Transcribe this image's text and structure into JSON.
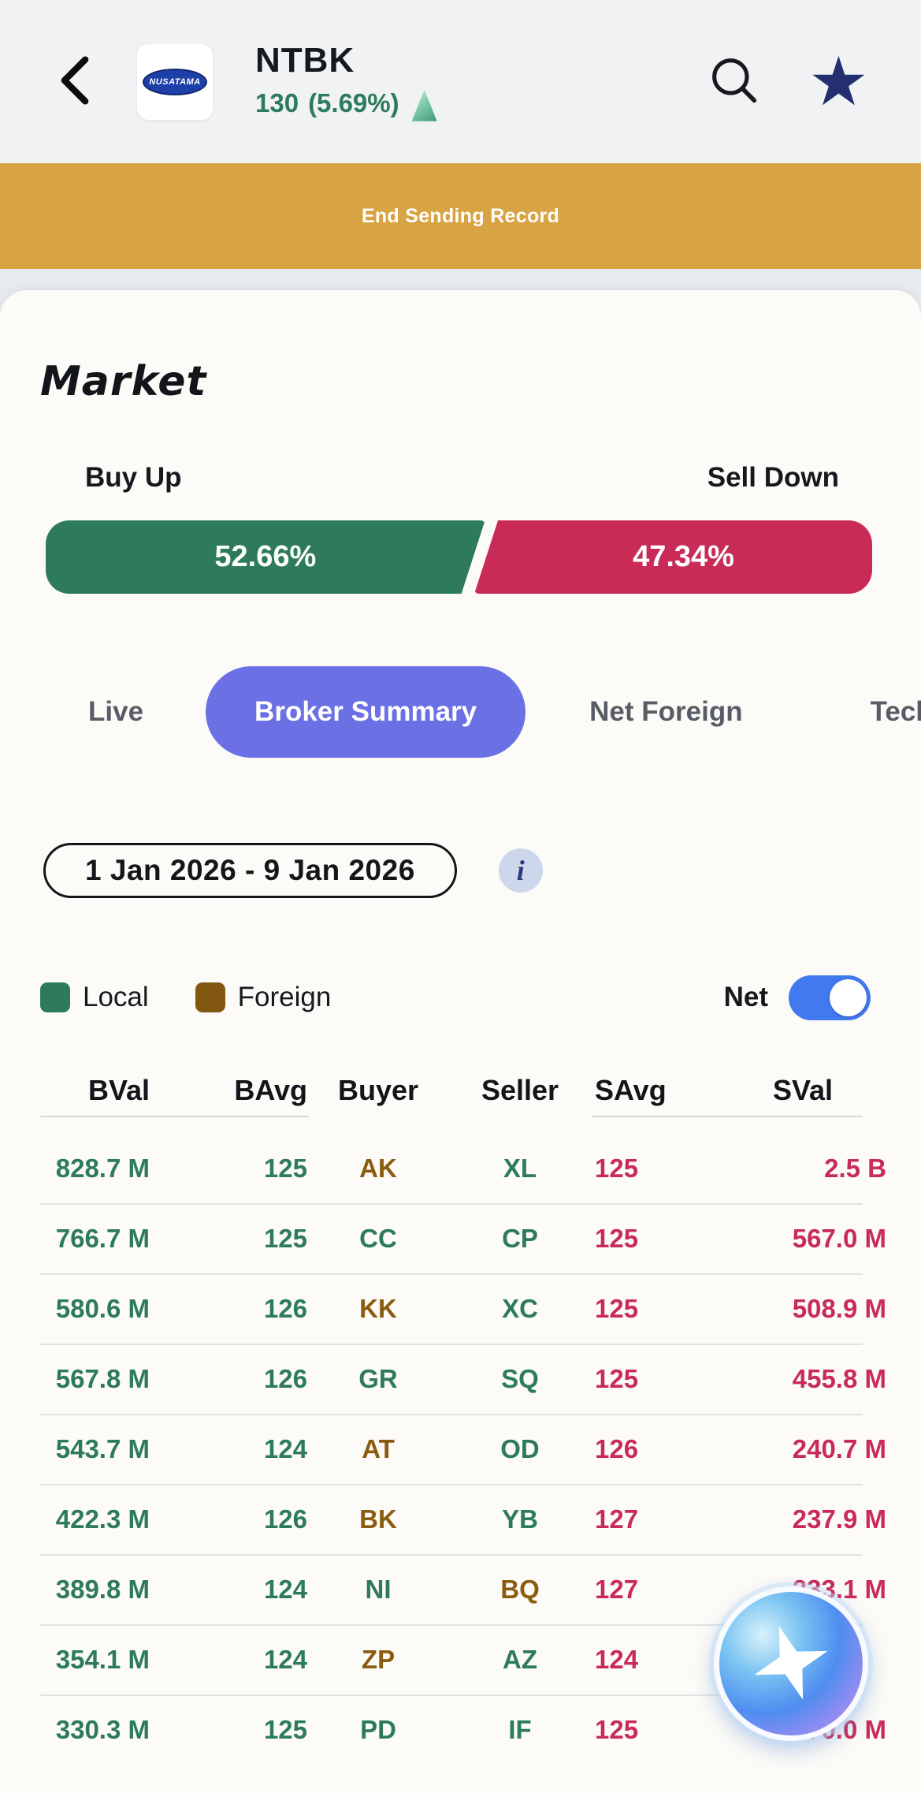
{
  "header": {
    "title": "NTBK",
    "price": "130",
    "change": "(5.69%)",
    "logo_text": "NUSATAMA"
  },
  "banner": {
    "label": "End Sending Record"
  },
  "market": {
    "title": "Market",
    "buy_label": "Buy Up",
    "sell_label": "Sell Down",
    "buy_pct": "52.66%",
    "sell_pct": "47.34%",
    "buy_pct_value": 52.66
  },
  "tabs": [
    {
      "label": "Live",
      "active": false
    },
    {
      "label": "Broker Summary",
      "active": true
    },
    {
      "label": "Net Foreign",
      "active": false
    },
    {
      "label": "Technical",
      "active": false
    }
  ],
  "filters": {
    "date_range": "1 Jan 2026 - 9 Jan 2026",
    "info_icon": "i"
  },
  "legend": {
    "local_label": "Local",
    "foreign_label": "Foreign",
    "net_label": "Net",
    "net_on": true
  },
  "table": {
    "headers": [
      "BVal",
      "BAvg",
      "Buyer",
      "Seller",
      "SAvg",
      "SVal"
    ],
    "rows": [
      {
        "bval": "828.7 M",
        "bavg": "125",
        "buyer": "AK",
        "buyer_type": "foreign",
        "seller": "XL",
        "seller_type": "local",
        "savg": "125",
        "sval": "2.5 B"
      },
      {
        "bval": "766.7 M",
        "bavg": "125",
        "buyer": "CC",
        "buyer_type": "local",
        "seller": "CP",
        "seller_type": "local",
        "savg": "125",
        "sval": "567.0 M"
      },
      {
        "bval": "580.6 M",
        "bavg": "126",
        "buyer": "KK",
        "buyer_type": "foreign",
        "seller": "XC",
        "seller_type": "local",
        "savg": "125",
        "sval": "508.9 M"
      },
      {
        "bval": "567.8 M",
        "bavg": "126",
        "buyer": "GR",
        "buyer_type": "local",
        "seller": "SQ",
        "seller_type": "local",
        "savg": "125",
        "sval": "455.8 M"
      },
      {
        "bval": "543.7 M",
        "bavg": "124",
        "buyer": "AT",
        "buyer_type": "foreign",
        "seller": "OD",
        "seller_type": "local",
        "savg": "126",
        "sval": "240.7 M"
      },
      {
        "bval": "422.3 M",
        "bavg": "126",
        "buyer": "BK",
        "buyer_type": "foreign",
        "seller": "YB",
        "seller_type": "local",
        "savg": "127",
        "sval": "237.9 M"
      },
      {
        "bval": "389.8 M",
        "bavg": "124",
        "buyer": "NI",
        "buyer_type": "local",
        "seller": "BQ",
        "seller_type": "foreign",
        "savg": "127",
        "sval": "233.1 M"
      },
      {
        "bval": "354.1 M",
        "bavg": "124",
        "buyer": "ZP",
        "buyer_type": "foreign",
        "seller": "AZ",
        "seller_type": "local",
        "savg": "124",
        "sval": ""
      },
      {
        "bval": "330.3 M",
        "bavg": "125",
        "buyer": "PD",
        "buyer_type": "local",
        "seller": "IF",
        "seller_type": "local",
        "savg": "125",
        "sval": "170.0 M"
      }
    ]
  },
  "colors": {
    "green": "#2d7b5a",
    "red": "#c92b57",
    "brown": "#8a5c10",
    "accent": "#6b70e4",
    "banner": "#d8a342",
    "toggle": "#4179ee",
    "star": "#232f6e"
  }
}
